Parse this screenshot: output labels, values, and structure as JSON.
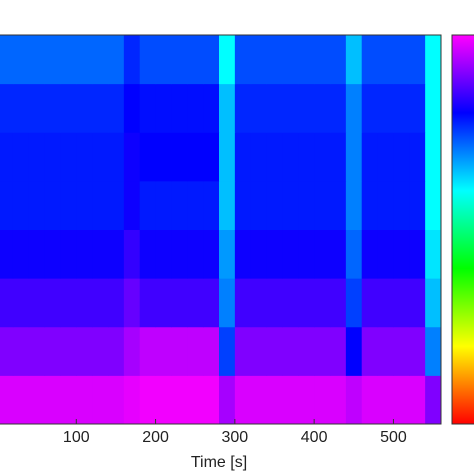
{
  "chart_data": {
    "type": "heatmap",
    "xlabel": "Time [s]",
    "xlim": [
      0,
      560
    ],
    "xticks": [
      100,
      200,
      300,
      400,
      500
    ],
    "x_edges": [
      0,
      20,
      40,
      60,
      80,
      100,
      120,
      140,
      160,
      180,
      200,
      220,
      240,
      260,
      280,
      300,
      320,
      340,
      360,
      380,
      400,
      420,
      440,
      460,
      480,
      500,
      520,
      540,
      560
    ],
    "zlim": [
      0,
      1
    ],
    "colormap": [
      "#ff0000",
      "#ffff00",
      "#00ff00",
      "#00ffff",
      "#0000ff",
      "#ff00ff"
    ],
    "z": [
      [
        0.97,
        0.97,
        0.97,
        0.97,
        0.97,
        0.97,
        0.97,
        0.97,
        0.98,
        0.99,
        0.99,
        0.99,
        0.99,
        0.99,
        0.93,
        0.97,
        0.97,
        0.97,
        0.97,
        0.97,
        0.97,
        0.97,
        0.95,
        0.97,
        0.97,
        0.97,
        0.97,
        0.9
      ],
      [
        0.9,
        0.9,
        0.9,
        0.9,
        0.9,
        0.9,
        0.9,
        0.9,
        0.93,
        0.95,
        0.95,
        0.95,
        0.95,
        0.95,
        0.75,
        0.9,
        0.9,
        0.9,
        0.9,
        0.9,
        0.9,
        0.9,
        0.8,
        0.9,
        0.9,
        0.9,
        0.9,
        0.7
      ],
      [
        0.85,
        0.85,
        0.85,
        0.85,
        0.85,
        0.85,
        0.85,
        0.85,
        0.88,
        0.85,
        0.85,
        0.85,
        0.85,
        0.85,
        0.7,
        0.85,
        0.85,
        0.85,
        0.85,
        0.85,
        0.85,
        0.85,
        0.75,
        0.85,
        0.85,
        0.85,
        0.85,
        0.65
      ],
      [
        0.81,
        0.81,
        0.81,
        0.81,
        0.81,
        0.81,
        0.81,
        0.81,
        0.84,
        0.81,
        0.81,
        0.81,
        0.81,
        0.81,
        0.68,
        0.81,
        0.81,
        0.81,
        0.81,
        0.81,
        0.81,
        0.81,
        0.72,
        0.81,
        0.81,
        0.81,
        0.81,
        0.62
      ],
      [
        0.78,
        0.78,
        0.78,
        0.78,
        0.78,
        0.78,
        0.78,
        0.78,
        0.81,
        0.78,
        0.78,
        0.78,
        0.78,
        0.78,
        0.65,
        0.78,
        0.78,
        0.78,
        0.78,
        0.78,
        0.78,
        0.78,
        0.7,
        0.78,
        0.78,
        0.78,
        0.78,
        0.6
      ],
      [
        0.78,
        0.78,
        0.78,
        0.78,
        0.78,
        0.78,
        0.78,
        0.78,
        0.81,
        0.8,
        0.8,
        0.8,
        0.8,
        0.8,
        0.65,
        0.78,
        0.78,
        0.78,
        0.78,
        0.78,
        0.78,
        0.78,
        0.7,
        0.78,
        0.78,
        0.78,
        0.78,
        0.6
      ],
      [
        0.77,
        0.77,
        0.77,
        0.77,
        0.77,
        0.77,
        0.77,
        0.77,
        0.8,
        0.79,
        0.79,
        0.79,
        0.79,
        0.79,
        0.65,
        0.77,
        0.77,
        0.77,
        0.77,
        0.77,
        0.77,
        0.77,
        0.7,
        0.77,
        0.77,
        0.77,
        0.77,
        0.6
      ],
      [
        0.72,
        0.72,
        0.72,
        0.72,
        0.72,
        0.72,
        0.72,
        0.72,
        0.77,
        0.74,
        0.74,
        0.74,
        0.74,
        0.74,
        0.6,
        0.74,
        0.74,
        0.74,
        0.74,
        0.74,
        0.74,
        0.74,
        0.65,
        0.74,
        0.74,
        0.74,
        0.74,
        0.6
      ]
    ]
  }
}
